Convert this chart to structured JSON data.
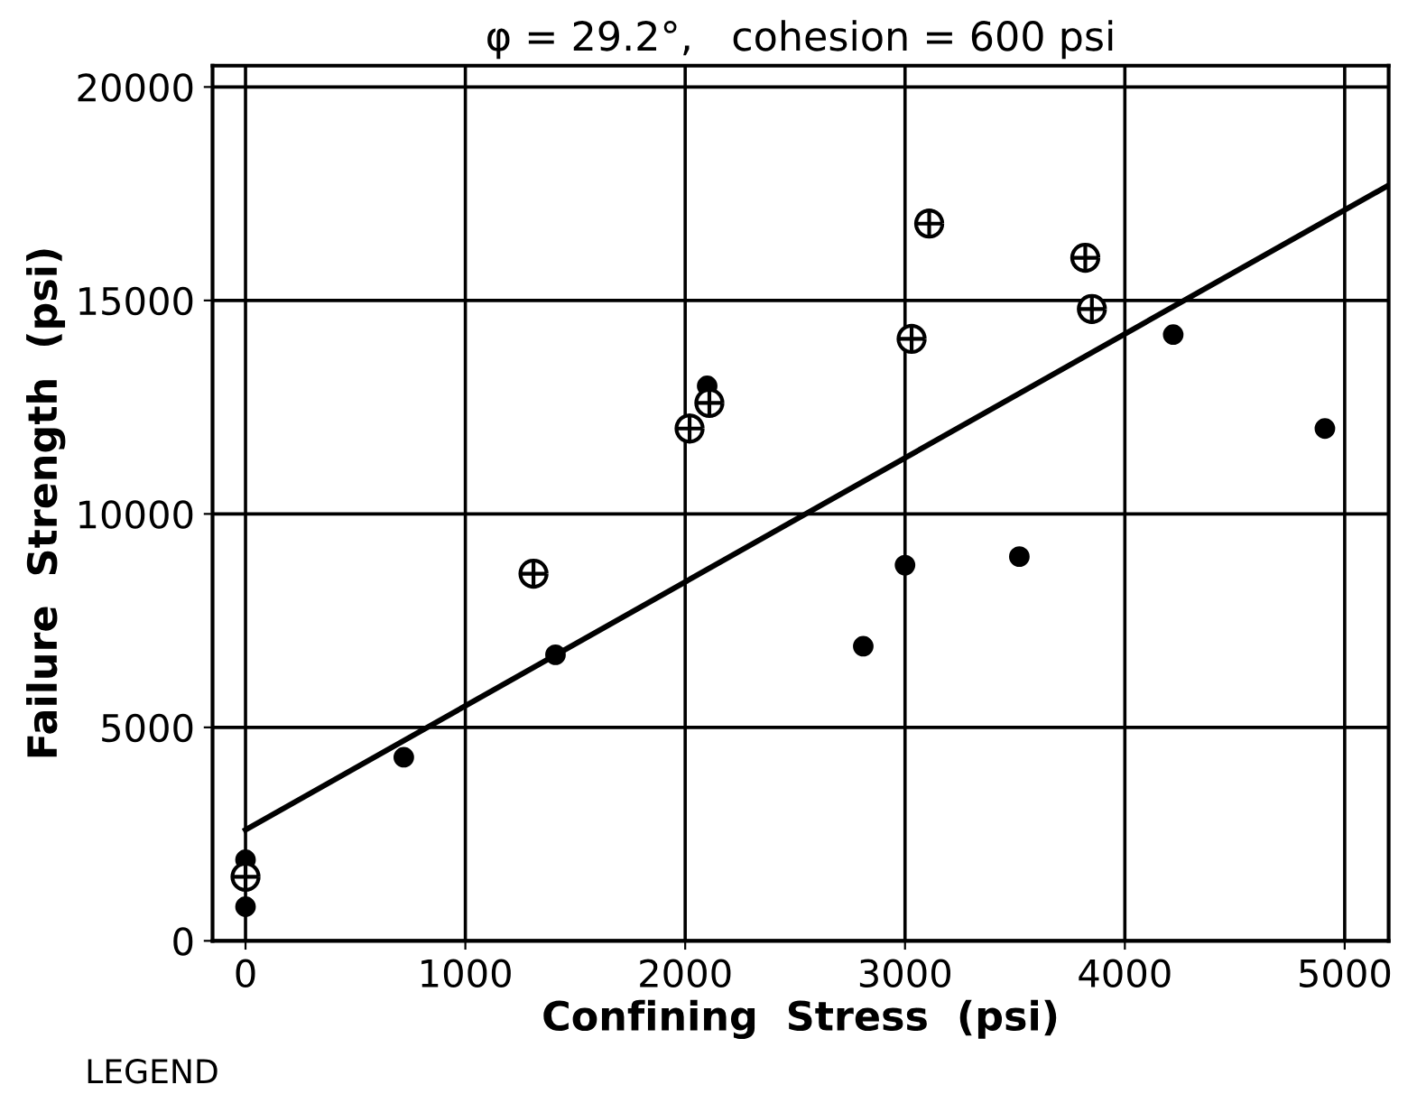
{
  "chart_data": {
    "type": "scatter",
    "title": "φ = 29.2°,   cohesion = 600 psi",
    "xlabel": "Confining  Stress  (psi)",
    "ylabel": "Failure  Strength  (psi)",
    "xlim": [
      -150,
      5200
    ],
    "ylim": [
      0,
      20500
    ],
    "xticks": [
      0,
      1000,
      2000,
      3000,
      4000,
      5000
    ],
    "yticks": [
      0,
      5000,
      10000,
      15000,
      20000
    ],
    "grid": true,
    "series": [
      {
        "marker": "circle",
        "color": "#000000",
        "x": [
          0,
          0,
          720,
          1410,
          2100,
          2810,
          3000,
          3520,
          4220,
          4910
        ],
        "values": [
          1900,
          800,
          4300,
          6700,
          13000,
          6900,
          8800,
          9000,
          14200,
          12000
        ]
      },
      {
        "marker": "cross",
        "color": "#000000",
        "x": [
          0,
          1310,
          2020,
          2110,
          3030,
          3110,
          3820,
          3850
        ],
        "values": [
          1500,
          8600,
          12000,
          12600,
          14100,
          16800,
          16000,
          14800
        ]
      },
      {
        "type": "line",
        "marker": "none",
        "color": "#000000",
        "x": [
          0,
          5200
        ],
        "values": [
          2600,
          17700
        ]
      }
    ],
    "annotations": [
      "LEGEND"
    ]
  }
}
